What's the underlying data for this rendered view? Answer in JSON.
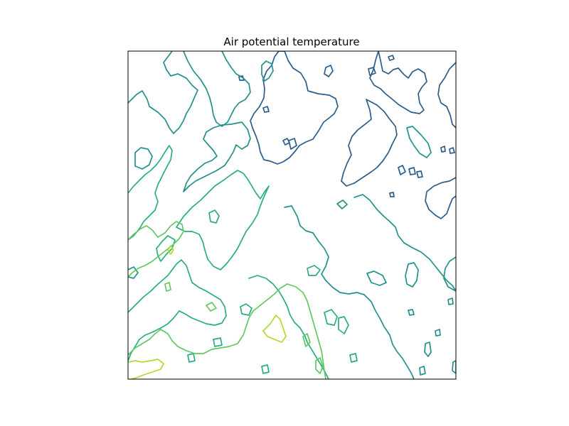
{
  "chart_data": {
    "type": "contour",
    "title": "Air potential temperature",
    "xlabel": "",
    "ylabel": "",
    "grid": false,
    "legend": "none",
    "colormap": "viridis",
    "levels": [
      {
        "color": "#2b5c8a"
      },
      {
        "color": "#21918c"
      },
      {
        "color": "#27ad81"
      },
      {
        "color": "#5ec962"
      },
      {
        "color": "#addc30"
      },
      {
        "color": "#fde725"
      }
    ]
  }
}
